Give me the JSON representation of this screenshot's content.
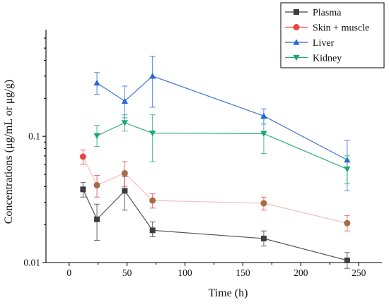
{
  "chart_data": {
    "type": "line",
    "xlabel": "Time (h)",
    "ylabel": "Concentrations (μg/mL or μg/g)",
    "x_scale": "linear",
    "y_scale": "log",
    "xlim": [
      -20,
      270
    ],
    "ylim": [
      0.01,
      0.7
    ],
    "xticks": [
      0,
      50,
      100,
      150,
      200,
      250
    ],
    "xtick_labels": [
      "0",
      "50",
      "100",
      "150",
      "200",
      "250"
    ],
    "yticks": [
      0.01,
      0.1
    ],
    "ytick_labels": [
      "0.01",
      "0.1"
    ],
    "grid": false,
    "legend_position": "top-right",
    "series": [
      {
        "name": "Plasma",
        "color": "#3d3d3d",
        "marker": "square",
        "x": [
          12,
          24,
          48,
          72,
          168,
          240
        ],
        "y": [
          0.038,
          0.022,
          0.037,
          0.018,
          0.0155,
          0.0104
        ],
        "err_low": [
          0.033,
          0.015,
          0.026,
          0.016,
          0.0135,
          0.009
        ],
        "err_high": [
          0.043,
          0.029,
          0.048,
          0.021,
          0.0178,
          0.012
        ]
      },
      {
        "name": "Skin + muscle",
        "color": "#e64646",
        "marker": "circle",
        "x": [
          12,
          24,
          48,
          72,
          168,
          240
        ],
        "y": [
          0.069,
          0.041,
          0.051,
          0.031,
          0.0295,
          0.0205
        ],
        "err_low": [
          0.06,
          0.033,
          0.04,
          0.027,
          0.026,
          0.0178
        ],
        "err_high": [
          0.078,
          0.049,
          0.063,
          0.035,
          0.033,
          0.0235
        ]
      },
      {
        "name": "Liver",
        "color": "#2a66d4",
        "marker": "triangle-up",
        "x": [
          24,
          48,
          72,
          168,
          240
        ],
        "y": [
          0.265,
          0.19,
          0.3,
          0.145,
          0.065
        ],
        "err_low": [
          0.215,
          0.14,
          0.17,
          0.125,
          0.037
        ],
        "err_high": [
          0.32,
          0.25,
          0.43,
          0.165,
          0.093
        ]
      },
      {
        "name": "Kidney",
        "color": "#18a870",
        "marker": "triangle-down",
        "x": [
          24,
          48,
          72,
          168,
          240
        ],
        "y": [
          0.101,
          0.128,
          0.106,
          0.105,
          0.055
        ],
        "err_low": [
          0.083,
          0.11,
          0.063,
          0.073,
          0.042
        ],
        "err_high": [
          0.122,
          0.148,
          0.148,
          0.138,
          0.07
        ]
      }
    ]
  }
}
